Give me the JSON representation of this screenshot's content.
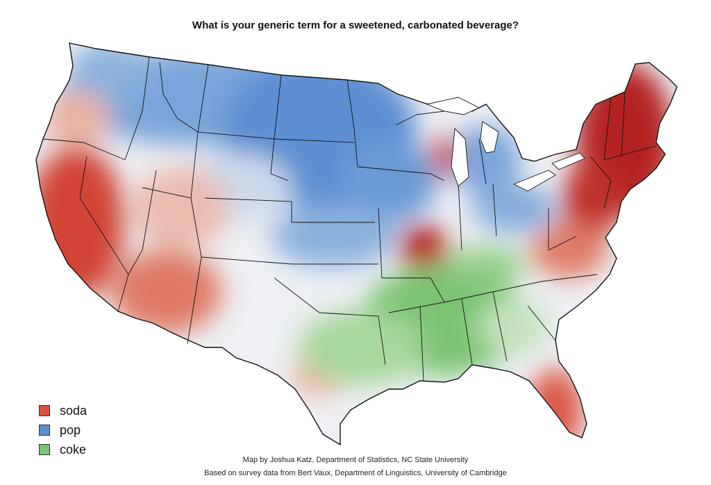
{
  "title": "What is your generic term for a sweetened, carbonated beverage?",
  "legend": [
    {
      "label": "soda",
      "color": "#d9503f"
    },
    {
      "label": "pop",
      "color": "#5b8fd1"
    },
    {
      "label": "coke",
      "color": "#7cc473"
    }
  ],
  "credits": {
    "line1": "Map by Joshua Katz, Department of Statistics, NC State University",
    "line2": "Based on survey data from Bert Vaux, Department of Linguistics, University of Cambridge"
  },
  "colors": {
    "soda_dark": "#b52424",
    "soda": "#d9503f",
    "soda_light": "#eab3a4",
    "pop": "#5b8fd1",
    "pop_light": "#b9cfe9",
    "coke": "#7cc473",
    "coke_light": "#cfe8c8",
    "mixed": "#eef0f4"
  }
}
